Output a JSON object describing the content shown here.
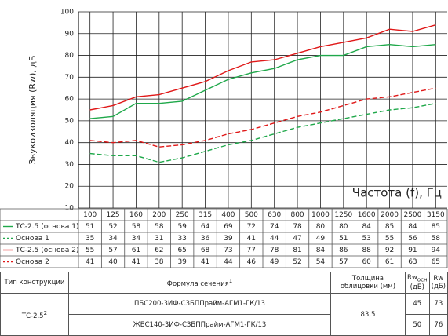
{
  "chart_data": {
    "type": "line",
    "ylabel": "Звукоизоляция (Rw), дБ",
    "xlabel": "Частота (f), Гц",
    "categories": [
      "100",
      "125",
      "160",
      "200",
      "250",
      "315",
      "400",
      "500",
      "630",
      "800",
      "1000",
      "1250",
      "1600",
      "2000",
      "2500",
      "3150"
    ],
    "ylim": [
      10,
      100
    ],
    "yticks": [
      10,
      20,
      30,
      40,
      50,
      60,
      70,
      80,
      90,
      100
    ],
    "grid": true,
    "series": [
      {
        "name": "ТС-2.5 (основа 1)",
        "color": "#1fa84a",
        "dash": false,
        "values": [
          51,
          52,
          58,
          58,
          59,
          64,
          69,
          72,
          74,
          78,
          80,
          80,
          84,
          85,
          84,
          85
        ]
      },
      {
        "name": "Основа 1",
        "color": "#1fa84a",
        "dash": true,
        "values": [
          35,
          34,
          34,
          31,
          33,
          36,
          39,
          41,
          44,
          47,
          49,
          51,
          53,
          55,
          56,
          58
        ]
      },
      {
        "name": "ТС-2.5 (основа 2)",
        "color": "#e01818",
        "dash": false,
        "values": [
          55,
          57,
          61,
          62,
          65,
          68,
          73,
          77,
          78,
          81,
          84,
          86,
          88,
          92,
          91,
          94
        ]
      },
      {
        "name": "Основа 2",
        "color": "#e01818",
        "dash": true,
        "values": [
          41,
          40,
          41,
          38,
          39,
          41,
          44,
          46,
          49,
          52,
          54,
          57,
          60,
          61,
          63,
          65
        ]
      }
    ]
  },
  "table": {
    "header": {
      "type": "Тип конструкции",
      "formula": "Формула сечения",
      "formula_note": "1",
      "thickness": "Толщина облицовки (мм)",
      "rw_base": "Rw",
      "rw_base_sub": "осн",
      "rw_base_unit": "(дБ)",
      "rw": "Rw",
      "rw_unit": "(дБ)"
    },
    "type": "ТС-2.5",
    "type_note": "2",
    "thickness": "83,5",
    "rows": [
      {
        "formula": "ПБС200-3ИФ-СЗБППрайм-АГМ1-ГК/13",
        "rw_base": "45",
        "rw": "73"
      },
      {
        "formula": "ЖБС140-3ИФ-СЗБППрайм-АГМ1-ГК/13",
        "rw_base": "50",
        "rw": "76"
      }
    ]
  }
}
